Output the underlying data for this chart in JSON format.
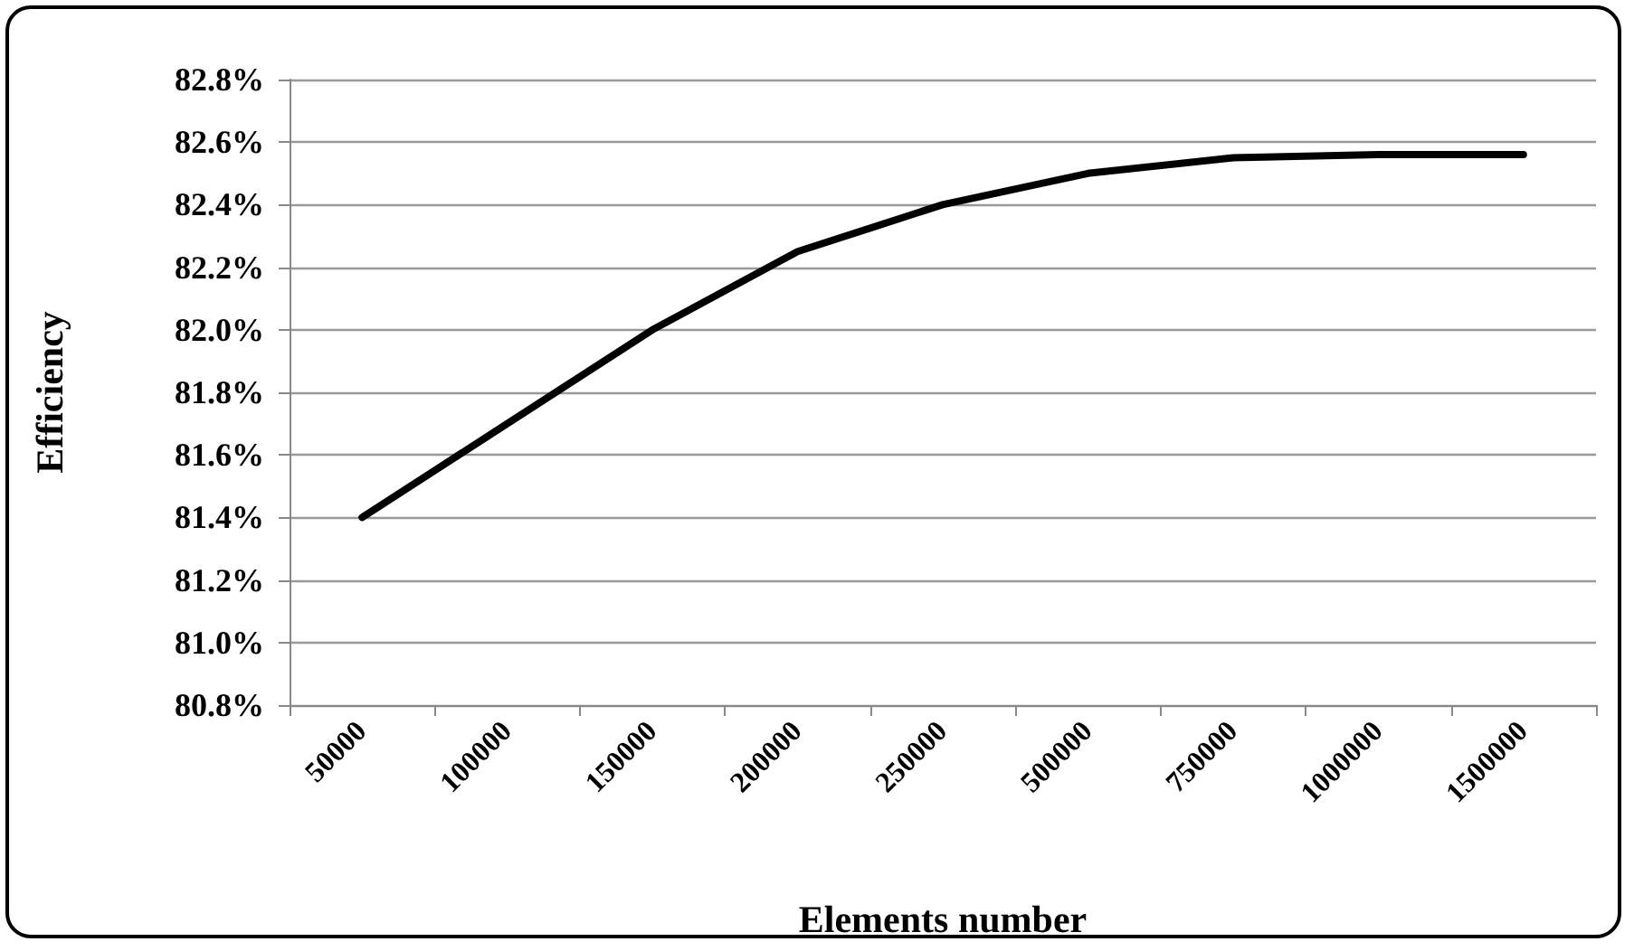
{
  "chart_data": {
    "type": "line",
    "xlabel": "Elements number",
    "ylabel": "Efficiency",
    "categories": [
      "50000",
      "100000",
      "150000",
      "200000",
      "250000",
      "500000",
      "750000",
      "1000000",
      "1500000"
    ],
    "series": [
      {
        "color": "#000000",
        "values": [
          81.4,
          81.7,
          82.0,
          82.25,
          82.4,
          82.5,
          82.55,
          82.56,
          82.56
        ]
      }
    ],
    "ylim": [
      80.8,
      82.8
    ],
    "yticks": [
      {
        "value": 80.8,
        "label": "80.8%"
      },
      {
        "value": 81.0,
        "label": "81.0%"
      },
      {
        "value": 81.2,
        "label": "81.2%"
      },
      {
        "value": 81.4,
        "label": "81.4%"
      },
      {
        "value": 81.6,
        "label": "81.6%"
      },
      {
        "value": 81.8,
        "label": "81.8%"
      },
      {
        "value": 82.0,
        "label": "82.0%"
      },
      {
        "value": 82.2,
        "label": "82.2%"
      },
      {
        "value": 82.4,
        "label": "82.4%"
      },
      {
        "value": 82.6,
        "label": "82.6%"
      },
      {
        "value": 82.8,
        "label": "82.8%"
      }
    ],
    "grid": "y",
    "marker": "none",
    "line_style": "solid"
  }
}
